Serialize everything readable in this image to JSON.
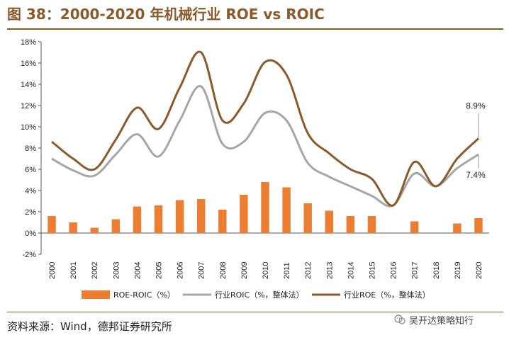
{
  "header": {
    "title": "图 38：2000-2020 年机械行业 ROE vs ROIC"
  },
  "footer": {
    "source": "资料来源：Wind，德邦证券研究所",
    "wechat_account": "吴开达策略知行"
  },
  "colors": {
    "bar": "#ED7D31",
    "roic_line": "#A6A6A6",
    "roe_line": "#8B5A2B",
    "title": "#8B5A2B"
  },
  "chart_data": {
    "type": "bar+line",
    "categories": [
      "2000",
      "2001",
      "2002",
      "2003",
      "2004",
      "2005",
      "2006",
      "2007",
      "2008",
      "2009",
      "2010",
      "2011",
      "2012",
      "2013",
      "2014",
      "2015",
      "2016",
      "2017",
      "2018",
      "2019",
      "2020"
    ],
    "ylim": [
      -2,
      18
    ],
    "yticks": [
      -2,
      0,
      2,
      4,
      6,
      8,
      10,
      12,
      14,
      16,
      18
    ],
    "ytick_labels": [
      "-2%",
      "0%",
      "2%",
      "4%",
      "6%",
      "8%",
      "10%",
      "12%",
      "14%",
      "16%",
      "18%"
    ],
    "series": [
      {
        "name": "ROE-ROIC（%）",
        "type": "bar",
        "values": [
          1.6,
          1.0,
          0.5,
          1.3,
          2.5,
          2.6,
          3.1,
          3.2,
          2.2,
          3.6,
          4.8,
          4.3,
          2.8,
          2.1,
          1.6,
          1.6,
          0.0,
          1.1,
          0.0,
          0.9,
          1.4
        ]
      },
      {
        "name": "行业ROIC（%，整体法）",
        "type": "line",
        "values": [
          7.0,
          5.9,
          5.4,
          7.4,
          9.3,
          7.2,
          10.6,
          13.8,
          8.4,
          8.6,
          11.3,
          10.6,
          6.6,
          5.3,
          4.4,
          3.5,
          2.6,
          5.6,
          4.4,
          6.1,
          7.4
        ]
      },
      {
        "name": "行业ROE（%，整体法）",
        "type": "line",
        "values": [
          8.6,
          7.0,
          6.0,
          8.8,
          11.8,
          9.8,
          13.7,
          17.0,
          10.6,
          12.2,
          16.1,
          14.9,
          9.4,
          7.5,
          6.0,
          5.1,
          2.6,
          6.7,
          4.4,
          7.0,
          8.9
        ]
      }
    ],
    "annotations": [
      {
        "series": "行业ROE（%，整体法）",
        "category": "2020",
        "text": "8.9%"
      },
      {
        "series": "行业ROIC（%，整体法）",
        "category": "2020",
        "text": "7.4%"
      }
    ],
    "legend": "bottom"
  }
}
